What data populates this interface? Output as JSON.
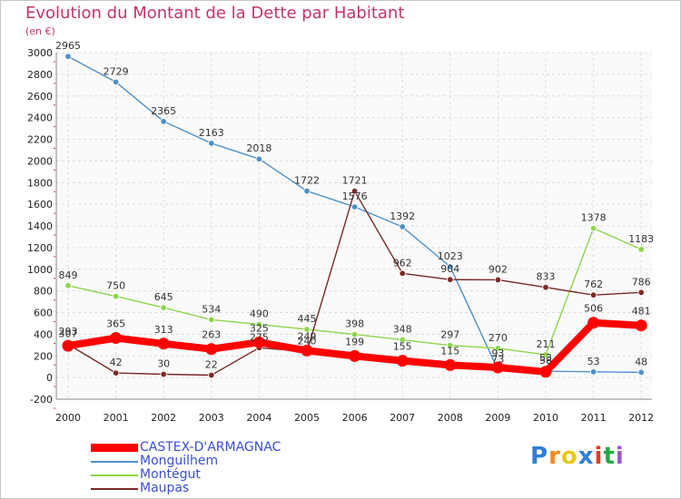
{
  "chart_data": {
    "type": "line",
    "title": "Evolution du Montant de la Dette par Habitant",
    "ylabel": "(en €)",
    "xlabel": "",
    "categories": [
      "2000",
      "2001",
      "2002",
      "2003",
      "2004",
      "2005",
      "2006",
      "2007",
      "2008",
      "2009",
      "2010",
      "2011",
      "2012"
    ],
    "ylim": [
      -200,
      3000
    ],
    "yticks": [
      -200,
      0,
      200,
      400,
      600,
      800,
      1000,
      1200,
      1400,
      1600,
      1800,
      2000,
      2200,
      2400,
      2600,
      2800,
      3000
    ],
    "grid": true,
    "legend_position": "bottom-left",
    "series": [
      {
        "name": "CASTEX-D'ARMAGNAC",
        "color": "#ff0000",
        "values": [
          293,
          365,
          313,
          263,
          325,
          249,
          199,
          155,
          115,
          93,
          53,
          506,
          481
        ]
      },
      {
        "name": "Monguilhem",
        "color": "#4f90c7",
        "values": [
          2965,
          2729,
          2365,
          2163,
          2018,
          1722,
          1576,
          1392,
          1023,
          73,
          58,
          53,
          48
        ]
      },
      {
        "name": "Montégut",
        "color": "#8fd44e",
        "values": [
          849,
          750,
          645,
          534,
          490,
          445,
          398,
          348,
          297,
          270,
          211,
          1378,
          1183
        ]
      },
      {
        "name": "Maupas",
        "color": "#7a2a2a",
        "values": [
          307,
          42,
          30,
          22,
          275,
          240,
          1721,
          962,
          904,
          902,
          833,
          762,
          786
        ]
      }
    ]
  },
  "logo": {
    "letters": [
      "P",
      "r",
      "o",
      "x",
      "i",
      "t",
      "i"
    ],
    "colors": [
      "#2f7fd6",
      "#f08a1a",
      "#e8c91a",
      "#2f7fd6",
      "#e23a2a",
      "#27a845",
      "#9b59c9"
    ]
  }
}
